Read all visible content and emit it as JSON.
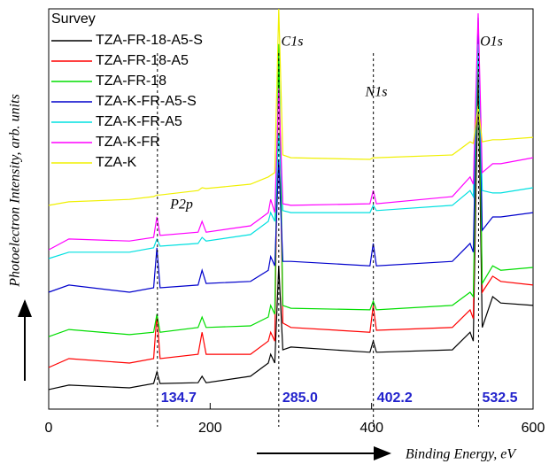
{
  "chart_data": {
    "type": "line",
    "x_label": "Binding Energy, eV",
    "y_label": "Photoelectron Intensity, arb. units",
    "legend_title": "Survey",
    "xlim": [
      0,
      600
    ],
    "ylim": [
      0,
      100
    ],
    "xticks": [
      0,
      200,
      400,
      600
    ],
    "x": [
      0,
      25,
      100,
      130,
      134,
      138,
      185,
      190,
      195,
      250,
      272,
      275,
      280,
      285,
      290,
      300,
      398,
      402,
      406,
      500,
      522,
      526,
      532,
      537,
      550,
      560,
      600
    ],
    "series": [
      {
        "name": "TZA-FR-18-A5-S",
        "color": "#000000",
        "values": [
          4.9,
          6.0,
          5.3,
          6.4,
          9.3,
          6.4,
          6.6,
          8.2,
          6.6,
          8.2,
          11.5,
          13.7,
          11.5,
          35.8,
          14.8,
          15.5,
          14.2,
          17.0,
          14.2,
          14.8,
          19.2,
          17.0,
          84.5,
          20.4,
          28.1,
          26.5,
          25.9
        ]
      },
      {
        "name": "TZA-FR-18-A5",
        "color": "#ff0000",
        "values": [
          10.4,
          12.6,
          11.5,
          12.6,
          23.7,
          12.6,
          13.7,
          19.2,
          13.7,
          13.7,
          17.0,
          19.2,
          17.0,
          88.9,
          21.5,
          20.4,
          19.2,
          25.9,
          19.7,
          20.4,
          24.8,
          22.6,
          93.4,
          29.2,
          33.2,
          31.9,
          31.0
        ]
      },
      {
        "name": "TZA-FR-18",
        "color": "#00dd00",
        "values": [
          18.1,
          19.9,
          18.6,
          19.2,
          23.7,
          19.2,
          20.4,
          23.0,
          20.4,
          20.8,
          23.0,
          25.9,
          23.7,
          91.2,
          25.9,
          25.2,
          24.8,
          27.0,
          24.8,
          25.9,
          29.2,
          28.1,
          95.6,
          31.4,
          35.8,
          34.7,
          35.4
        ]
      },
      {
        "name": "TZA-K-FR-A5-S",
        "color": "#0000cc",
        "values": [
          29.2,
          31.0,
          29.2,
          30.3,
          40.3,
          30.3,
          31.0,
          34.7,
          31.4,
          31.9,
          34.7,
          38.1,
          35.8,
          62.4,
          36.9,
          36.9,
          35.8,
          41.4,
          35.8,
          36.9,
          41.4,
          39.2,
          97.8,
          44.7,
          48.0,
          48.0,
          49.1
        ]
      },
      {
        "name": "TZA-K-FR-A5",
        "color": "#00e0e0",
        "values": [
          37.6,
          39.2,
          39.2,
          40.3,
          42.5,
          40.7,
          41.4,
          42.9,
          42.0,
          43.6,
          46.9,
          49.1,
          46.9,
          69.0,
          49.6,
          49.1,
          49.1,
          50.9,
          49.6,
          50.9,
          54.6,
          53.1,
          91.2,
          54.6,
          54.0,
          54.0,
          55.3
        ]
      },
      {
        "name": "TZA-K-FR",
        "color": "#ff00ff",
        "values": [
          39.8,
          42.5,
          42.0,
          42.9,
          48.0,
          43.4,
          44.2,
          46.9,
          44.2,
          45.8,
          49.1,
          52.4,
          49.1,
          80.1,
          51.3,
          50.9,
          51.3,
          54.6,
          51.3,
          53.1,
          58.0,
          56.2,
          98.9,
          59.1,
          61.3,
          61.3,
          62.8
        ]
      },
      {
        "name": "TZA-K",
        "color": "#f0f000",
        "values": [
          50.9,
          51.8,
          52.4,
          53.1,
          53.5,
          53.5,
          54.6,
          55.3,
          55.1,
          56.2,
          58.0,
          58.4,
          59.1,
          100,
          63.5,
          62.8,
          62.4,
          62.8,
          62.8,
          63.5,
          66.8,
          66.4,
          75.7,
          66.8,
          67.3,
          67.3,
          67.9
        ]
      }
    ],
    "annotations": [
      "C1s",
      "O1s",
      "N1s",
      "P2p"
    ],
    "peak_markers": [
      {
        "value": 134.7,
        "label": "134.7"
      },
      {
        "value": 285.0,
        "label": "285.0"
      },
      {
        "value": 402.2,
        "label": "402.2"
      },
      {
        "value": 532.5,
        "label": "532.5"
      }
    ]
  }
}
